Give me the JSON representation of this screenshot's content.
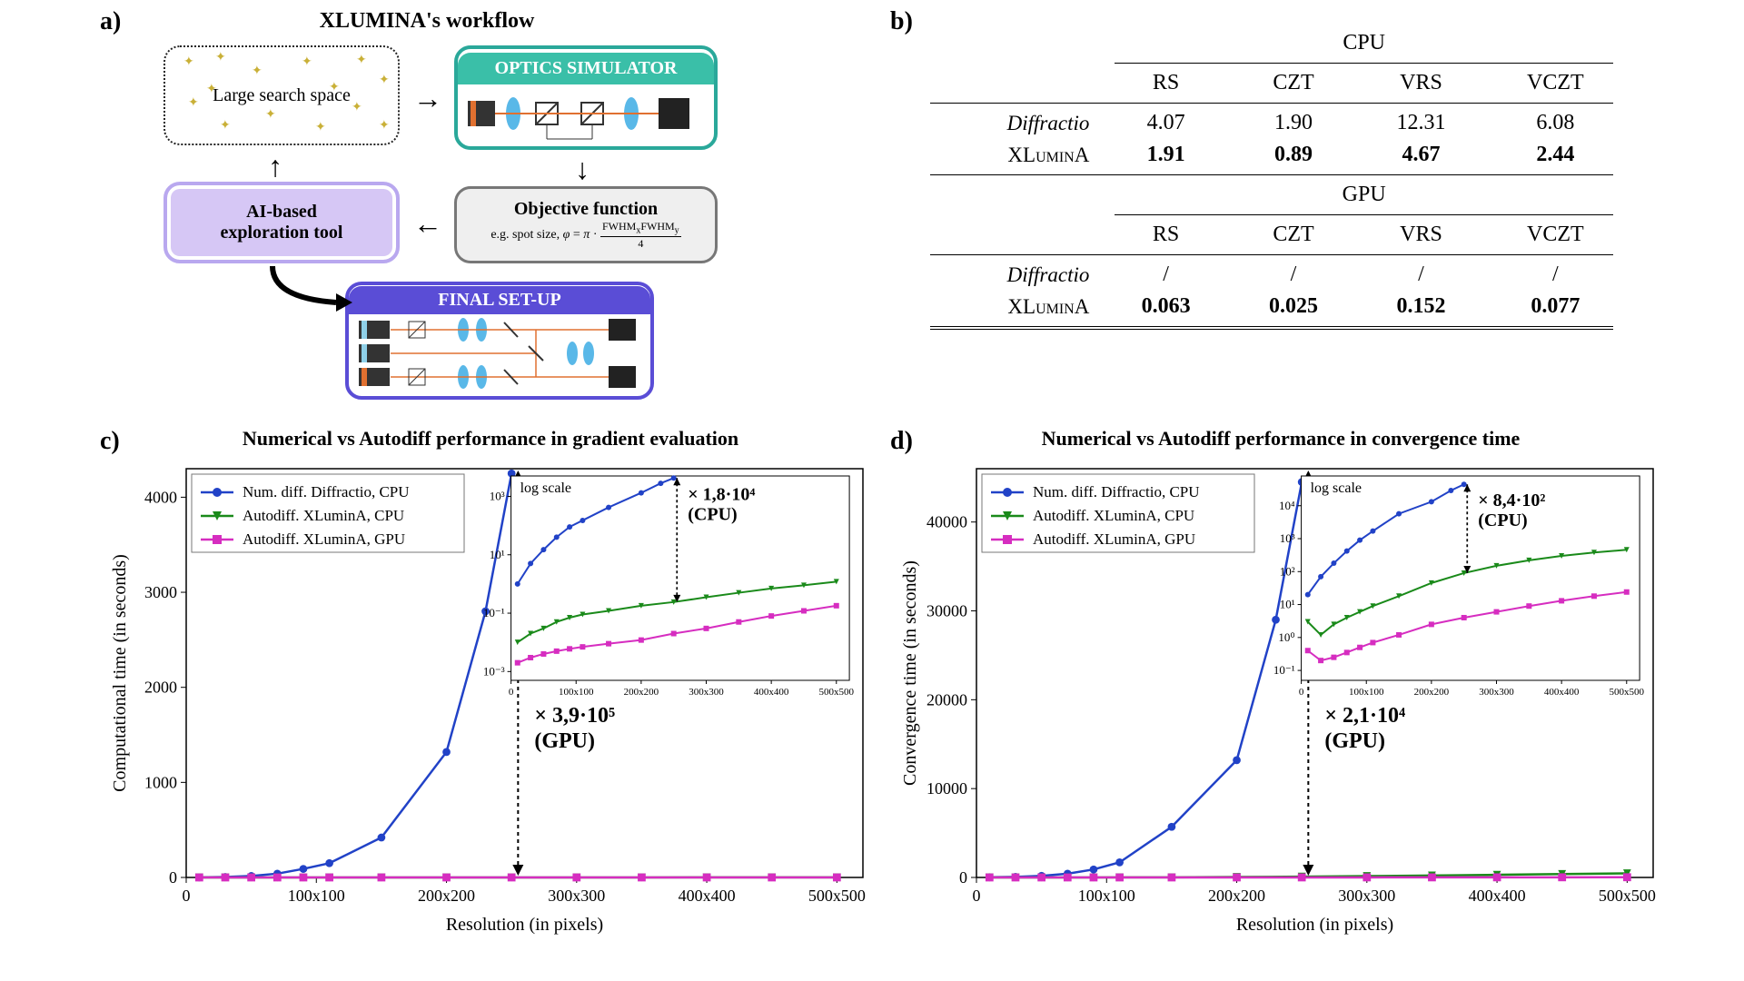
{
  "labels": {
    "a": "a)",
    "b": "b)",
    "c": "c)",
    "d": "d)"
  },
  "panel_a": {
    "title": "XLUMINA's workflow",
    "box_search": "Large search space",
    "box_sim": "OPTICS SIMULATOR",
    "box_obj_title": "Objective function",
    "box_obj_detail": "e.g. spot size, φ = π · FWHMₓFWHMᵧ / 4",
    "box_ai": "AI-based\nexploration tool",
    "box_final": "FINAL SET-UP",
    "colors": {
      "sim_border": "#2aa89a",
      "sim_fill": "#3abfa8",
      "obj_border": "#777777",
      "obj_fill": "#efefef",
      "ai_border": "#b9a8ef",
      "ai_fill": "#d6c7f5",
      "final_border": "#5a4dd6",
      "final_fill": "#ffffff",
      "search_border": "#222"
    }
  },
  "panel_b": {
    "header_cpu": "CPU",
    "header_gpu": "GPU",
    "cols": [
      "RS",
      "CZT",
      "VRS",
      "VCZT"
    ],
    "rows_cpu": [
      {
        "name": "Diffractio",
        "vals": [
          "4.07",
          "1.90",
          "12.31",
          "6.08"
        ],
        "bold": false,
        "italic": true
      },
      {
        "name": "XLuminA",
        "vals": [
          "1.91",
          "0.89",
          "4.67",
          "2.44"
        ],
        "bold": true,
        "italic": false
      }
    ],
    "rows_gpu": [
      {
        "name": "Diffractio",
        "vals": [
          "/",
          "/",
          "/",
          "/"
        ],
        "bold": false,
        "italic": true
      },
      {
        "name": "XLuminA",
        "vals": [
          "0.063",
          "0.025",
          "0.152",
          "0.077"
        ],
        "bold": true,
        "italic": false
      }
    ]
  },
  "chart_common": {
    "xlabel": "Resolution (in pixels)",
    "xticks": [
      "0",
      "100x100",
      "200x200",
      "300x300",
      "400x400",
      "500x500"
    ],
    "xtick_pos": [
      0,
      100,
      200,
      300,
      400,
      500
    ],
    "xlim": [
      0,
      520
    ],
    "legend": [
      {
        "label": "Num. diff. Diffractio, CPU",
        "color": "#2142c7",
        "marker": "circle"
      },
      {
        "label": "Autodiff. XLuminA, CPU",
        "color": "#1a8a1a",
        "marker": "tri"
      },
      {
        "label": "Autodiff. XLuminA, GPU",
        "color": "#d62dc0",
        "marker": "square"
      }
    ],
    "inset_label": "log scale",
    "inset_xticks": [
      "0",
      "100x100",
      "200x200",
      "300x300",
      "400x400",
      "500x500"
    ],
    "grid_color": "#dddddd",
    "bg": "#ffffff",
    "line_width": 2.5,
    "marker_size": 7
  },
  "panel_c": {
    "title": "Numerical vs Autodiff performance in gradient evaluation",
    "ylabel": "Computational time (in seconds)",
    "ylim": [
      0,
      4300
    ],
    "yticks": [
      0,
      1000,
      2000,
      3000,
      4000
    ],
    "series": {
      "blue": {
        "x": [
          10,
          30,
          50,
          70,
          90,
          110,
          150,
          200,
          230,
          250
        ],
        "y": [
          1,
          5,
          15,
          40,
          90,
          150,
          420,
          1320,
          2800,
          4250
        ]
      },
      "green": {
        "x": [
          10,
          30,
          50,
          70,
          90,
          110,
          150,
          200,
          250,
          300,
          350,
          400,
          450,
          500
        ],
        "y": [
          0.01,
          0.02,
          0.03,
          0.05,
          0.07,
          0.09,
          0.12,
          0.18,
          0.24,
          0.35,
          0.5,
          0.7,
          0.9,
          1.2
        ]
      },
      "pink": {
        "x": [
          10,
          30,
          50,
          70,
          90,
          110,
          150,
          200,
          250,
          300,
          350,
          400,
          450,
          500
        ],
        "y": [
          0.002,
          0.003,
          0.004,
          0.005,
          0.006,
          0.007,
          0.009,
          0.012,
          0.02,
          0.03,
          0.05,
          0.08,
          0.12,
          0.18
        ]
      }
    },
    "annot_gpu": "× 3,9·10⁵\n(GPU)",
    "annot_cpu": "× 1,8·10⁴\n(CPU)",
    "inset_ylim": [
      0.0005,
      5000
    ],
    "inset_yticks": [
      "10⁻³",
      "10⁻¹",
      "10¹",
      "10³"
    ],
    "inset_ytick_vals": [
      0.001,
      0.1,
      10,
      1000
    ]
  },
  "panel_d": {
    "title": "Numerical vs Autodiff performance in convergence time",
    "ylabel": "Convergence time (in seconds)",
    "ylim": [
      0,
      46000
    ],
    "yticks": [
      0,
      10000,
      20000,
      30000,
      40000
    ],
    "series": {
      "blue": {
        "x": [
          10,
          30,
          50,
          70,
          90,
          110,
          150,
          200,
          230,
          250
        ],
        "y": [
          20,
          70,
          180,
          420,
          900,
          1700,
          5700,
          13200,
          29000,
          44500
        ]
      },
      "green": {
        "x": [
          10,
          30,
          50,
          70,
          90,
          110,
          150,
          200,
          250,
          300,
          350,
          400,
          450,
          500
        ],
        "y": [
          3,
          1.2,
          2.5,
          4,
          6,
          9,
          18,
          45,
          90,
          150,
          220,
          300,
          380,
          460
        ]
      },
      "pink": {
        "x": [
          10,
          30,
          50,
          70,
          90,
          110,
          150,
          200,
          250,
          300,
          350,
          400,
          450,
          500
        ],
        "y": [
          0.4,
          0.2,
          0.25,
          0.35,
          0.5,
          0.7,
          1.2,
          2.5,
          4,
          6,
          9,
          13,
          18,
          24
        ]
      }
    },
    "annot_gpu": "× 2,1·10⁴\n(GPU)",
    "annot_cpu": "× 8,4·10²\n(CPU)",
    "inset_ylim": [
      0.05,
      80000
    ],
    "inset_yticks": [
      "10⁻¹",
      "10⁰",
      "10¹",
      "10²",
      "10³",
      "10⁴"
    ],
    "inset_ytick_vals": [
      0.1,
      1,
      10,
      100,
      1000,
      10000
    ]
  }
}
